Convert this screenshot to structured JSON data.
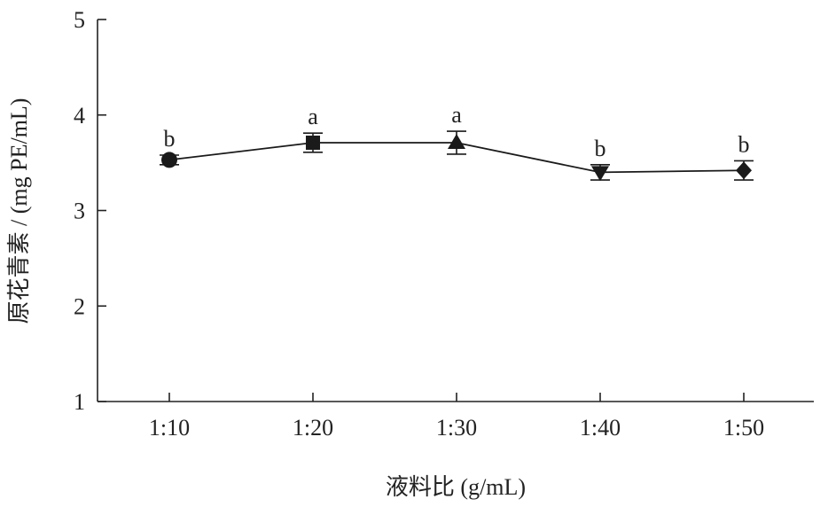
{
  "chart_data": {
    "type": "line",
    "title": "",
    "xlabel": "液料比 (g/mL)",
    "ylabel": "原花青素 / (mg PE/mL)",
    "categories": [
      "1:10",
      "1:20",
      "1:30",
      "1:40",
      "1:50"
    ],
    "ylim": [
      1,
      5
    ],
    "yticks": [
      "1",
      "2",
      "3",
      "4",
      "5"
    ],
    "grid": false,
    "series": [
      {
        "values": [
          3.53,
          3.71,
          3.71,
          3.4,
          3.42
        ],
        "errors": [
          0.05,
          0.1,
          0.12,
          0.08,
          0.1
        ],
        "markers": [
          "circle",
          "square",
          "triangle-up",
          "triangle-down",
          "diamond"
        ],
        "significance_labels": [
          "b",
          "a",
          "a",
          "b",
          "b"
        ]
      }
    ],
    "color": "#1a1a1a"
  }
}
